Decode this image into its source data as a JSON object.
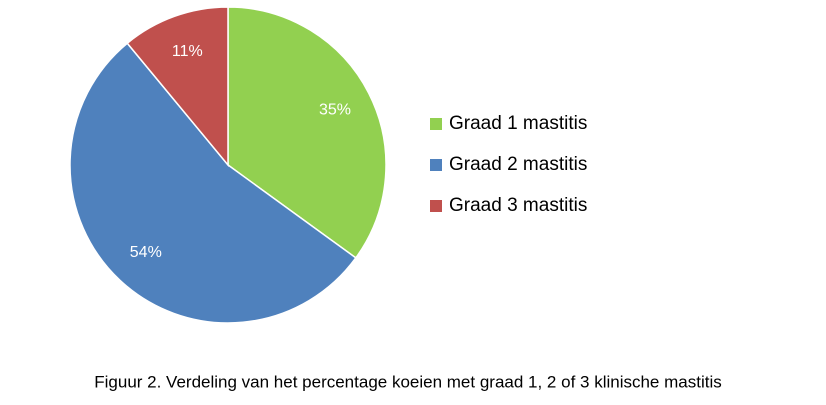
{
  "chart_data": {
    "type": "pie",
    "caption": "Figuur 2. Verdeling van het percentage koeien met graad 1, 2 of 3 klinische mastitis",
    "categories": [
      "Graad 1 mastitis",
      "Graad 2 mastitis",
      "Graad 3 mastitis"
    ],
    "values": [
      35,
      54,
      11
    ],
    "value_labels": [
      "35%",
      "54%",
      "11%"
    ],
    "colors": [
      "#92d050",
      "#4f81bd",
      "#c0504d"
    ],
    "legend": "right"
  }
}
